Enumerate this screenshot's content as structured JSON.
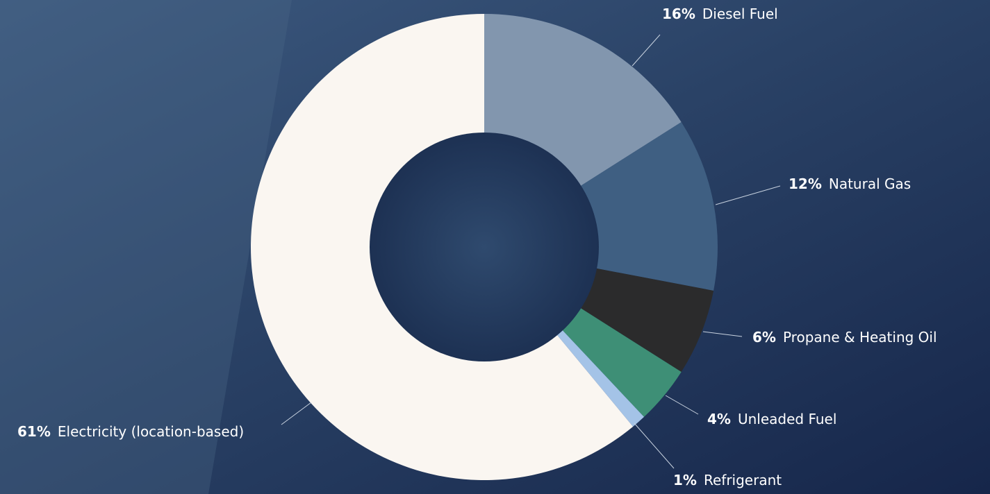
{
  "chart_data": {
    "type": "pie",
    "categories": [
      "Diesel Fuel",
      "Natural Gas",
      "Propane & Heating Oil",
      "Unleaded Fuel",
      "Refrigerant",
      "Electricity (location-based)"
    ],
    "values": [
      16,
      12,
      6,
      4,
      1,
      61
    ],
    "value_labels": [
      "16%",
      "12%",
      "6%",
      "4%",
      "1%",
      "61%"
    ],
    "colors": [
      "#8296ae",
      "#3f5f82",
      "#2b2b2c",
      "#3e8f76",
      "#a4c3e7",
      "#faf6f1"
    ]
  }
}
